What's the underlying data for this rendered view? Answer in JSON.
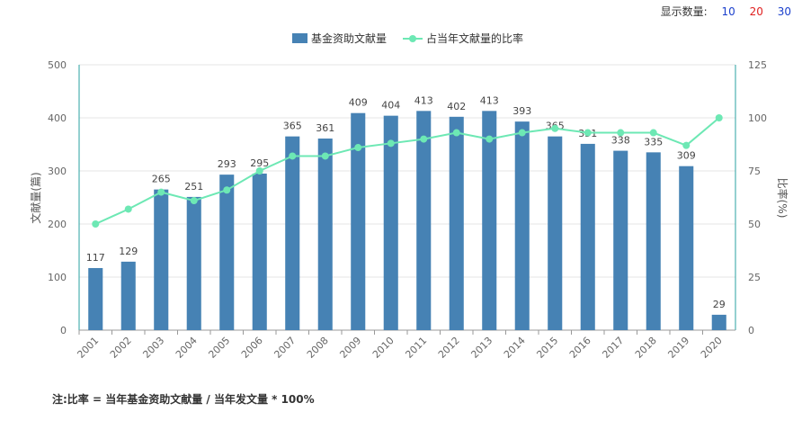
{
  "display_count": {
    "label": "显示数量:",
    "options": [
      {
        "label": "10",
        "color": "#1a3fcc"
      },
      {
        "label": "20",
        "color": "#e02020"
      },
      {
        "label": "30",
        "color": "#1a3fcc"
      }
    ]
  },
  "footnote": "注:比率 = 当年基金资助文献量 / 当年发文量 * 100%",
  "chart_data": {
    "type": "bar",
    "categories": [
      "2001",
      "2002",
      "2003",
      "2004",
      "2005",
      "2006",
      "2007",
      "2008",
      "2009",
      "2010",
      "2011",
      "2012",
      "2013",
      "2014",
      "2015",
      "2016",
      "2017",
      "2018",
      "2019",
      "2020"
    ],
    "series": [
      {
        "name": "基金资助文献量",
        "type": "bar",
        "axis": "left",
        "color": "#4682b4",
        "values": [
          117,
          129,
          265,
          251,
          293,
          295,
          365,
          361,
          409,
          404,
          413,
          402,
          413,
          393,
          365,
          351,
          338,
          335,
          309,
          29
        ]
      },
      {
        "name": "占当年文献量的比率",
        "type": "line",
        "axis": "right",
        "color": "#6de8b4",
        "values": [
          50,
          57,
          65,
          61,
          66,
          75,
          82,
          82,
          86,
          88,
          90,
          93,
          90,
          93,
          95,
          93,
          93,
          93,
          87,
          100
        ]
      }
    ],
    "ylabel": "文献量(篇)",
    "y2label": "比率(%)",
    "ylim": [
      0,
      500
    ],
    "y_ticks": [
      0,
      100,
      200,
      300,
      400,
      500
    ],
    "y2lim": [
      0,
      125
    ],
    "y2_ticks": [
      0,
      25,
      50,
      75,
      100,
      125
    ],
    "grid": true,
    "legend_position": "top-center"
  }
}
